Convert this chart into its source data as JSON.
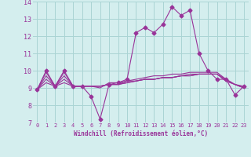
{
  "x": [
    0,
    1,
    2,
    3,
    4,
    5,
    6,
    7,
    8,
    9,
    10,
    11,
    12,
    13,
    14,
    15,
    16,
    17,
    18,
    19,
    20,
    21,
    22,
    23
  ],
  "line1": [
    8.9,
    10.0,
    9.1,
    10.0,
    9.1,
    9.1,
    8.5,
    7.2,
    9.2,
    9.3,
    9.5,
    12.2,
    12.5,
    12.2,
    12.7,
    13.7,
    13.2,
    13.5,
    11.0,
    10.0,
    9.5,
    9.5,
    8.6,
    9.1
  ],
  "line2": [
    8.9,
    9.9,
    9.1,
    9.9,
    9.1,
    9.1,
    9.1,
    9.0,
    9.3,
    9.3,
    9.4,
    9.5,
    9.6,
    9.7,
    9.7,
    9.8,
    9.8,
    9.9,
    9.9,
    9.9,
    9.9,
    9.5,
    9.2,
    9.1
  ],
  "line3": [
    8.9,
    9.5,
    9.1,
    9.5,
    9.1,
    9.1,
    9.1,
    9.1,
    9.2,
    9.2,
    9.3,
    9.4,
    9.5,
    9.5,
    9.6,
    9.6,
    9.7,
    9.7,
    9.8,
    9.8,
    9.8,
    9.4,
    9.2,
    9.0
  ],
  "line4": [
    8.9,
    9.7,
    9.1,
    9.7,
    9.1,
    9.1,
    9.1,
    9.1,
    9.2,
    9.2,
    9.3,
    9.4,
    9.5,
    9.5,
    9.6,
    9.6,
    9.7,
    9.8,
    9.8,
    9.8,
    9.8,
    9.5,
    9.2,
    9.0
  ],
  "line5": [
    8.9,
    9.3,
    9.1,
    9.3,
    9.1,
    9.1,
    9.1,
    9.1,
    9.2,
    9.2,
    9.4,
    9.4,
    9.5,
    9.5,
    9.6,
    9.6,
    9.7,
    9.7,
    9.8,
    9.8,
    9.8,
    9.4,
    9.2,
    9.0
  ],
  "line_color": "#993399",
  "bg_color": "#d4eeee",
  "grid_color": "#aad4d4",
  "xlabel": "Windchill (Refroidissement éolien,°C)",
  "xlim": [
    -0.5,
    23.5
  ],
  "ylim": [
    7,
    14
  ],
  "yticks": [
    7,
    8,
    9,
    10,
    11,
    12,
    13,
    14
  ],
  "xticks": [
    0,
    1,
    2,
    3,
    4,
    5,
    6,
    7,
    8,
    9,
    10,
    11,
    12,
    13,
    14,
    15,
    16,
    17,
    18,
    19,
    20,
    21,
    22,
    23
  ]
}
